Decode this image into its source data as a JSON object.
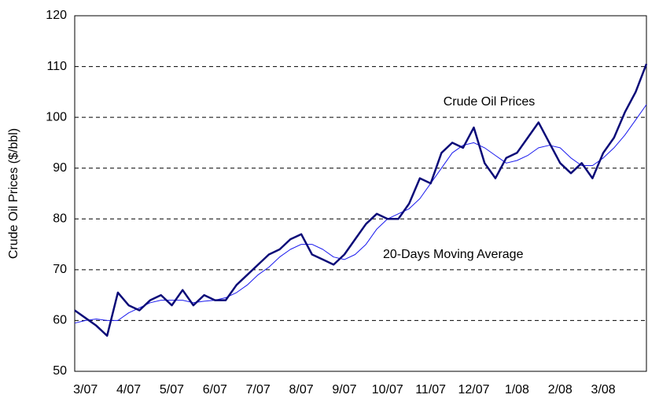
{
  "chart_data": {
    "type": "line",
    "y_label": "Crude Oil Prices ($/bbl)",
    "categories": [
      null,
      "3/07",
      null,
      null,
      null,
      "4/07",
      null,
      null,
      null,
      "5/07",
      null,
      null,
      null,
      "6/07",
      null,
      null,
      null,
      "7/07",
      null,
      null,
      null,
      "8/07",
      null,
      null,
      null,
      "9/07",
      null,
      null,
      null,
      "10/07",
      null,
      null,
      null,
      "11/07",
      null,
      null,
      null,
      "12/07",
      null,
      null,
      null,
      "1/08",
      null,
      null,
      null,
      "2/08",
      null,
      null,
      null,
      "3/08",
      null,
      null,
      null,
      null
    ],
    "series": [
      {
        "name": "Crude Oil Prices",
        "color": "#0a0a78",
        "width": 2.5,
        "values": [
          62,
          60.5,
          59,
          57,
          65.5,
          63,
          62,
          64,
          65,
          63,
          66,
          63,
          65,
          64,
          64,
          67,
          69,
          71,
          73,
          74,
          76,
          77,
          73,
          72,
          71,
          73,
          76,
          79,
          81,
          80,
          80,
          83,
          88,
          87,
          93,
          95,
          94,
          98,
          91,
          88,
          92,
          93,
          96,
          99,
          95,
          91,
          89,
          91,
          88,
          93,
          96,
          101,
          105,
          110.5
        ]
      },
      {
        "name": "20-Days Moving Average",
        "color": "#1a1aee",
        "width": 1,
        "values": [
          59.5,
          60,
          60.3,
          60,
          60,
          61.5,
          62.5,
          63.5,
          64,
          64,
          64,
          63.5,
          63.8,
          64,
          64.5,
          65.5,
          67,
          69,
          70.5,
          72.5,
          74,
          75,
          75,
          74,
          72.5,
          72,
          73,
          75,
          78,
          80,
          81,
          82,
          84,
          87,
          90,
          93,
          94.5,
          95,
          94,
          92.5,
          91,
          91.5,
          92.5,
          94,
          94.5,
          94,
          92,
          90.5,
          90.5,
          92,
          94,
          96.5,
          99.5,
          102.5
        ]
      }
    ],
    "ylim": [
      50,
      120
    ],
    "yticks": [
      50,
      60,
      70,
      80,
      90,
      100,
      110,
      120
    ],
    "grid": true
  }
}
